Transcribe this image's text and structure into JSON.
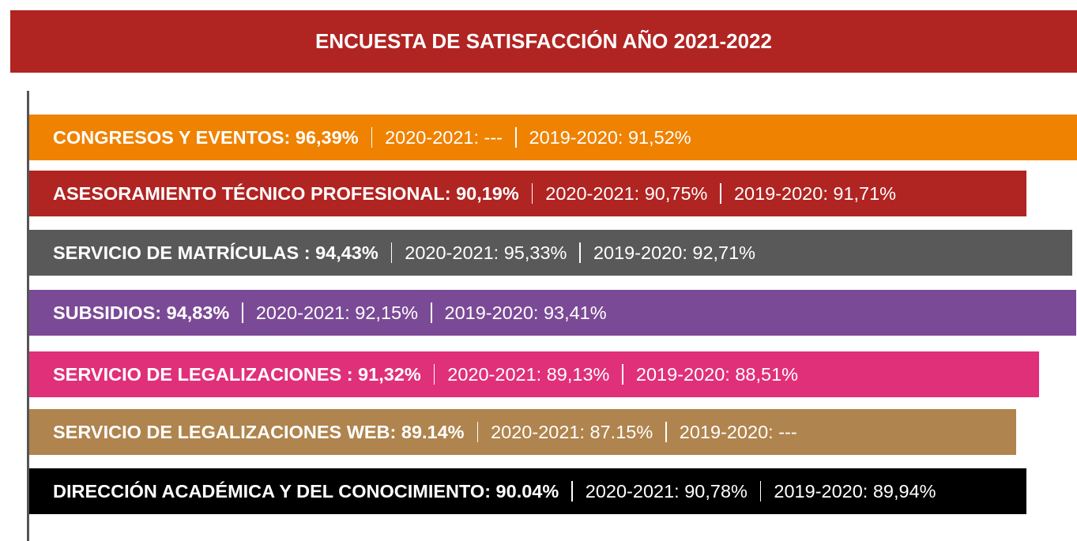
{
  "header": {
    "title": "ENCUESTA DE SATISFACCIÓN AÑO 2021-2022"
  },
  "rows": [
    {
      "head": "CONGRESOS Y EVENTOS: 96,39%",
      "y2021": "2020-2021: ---",
      "y2020": "2019-2020: 91,52%",
      "color": "#ef8200"
    },
    {
      "head": "ASESORAMIENTO TÉCNICO PROFESIONAL: 90,19%",
      "y2021": "2020-2021: 90,75%",
      "y2020": "2019-2020: 91,71%",
      "color": "#b02422"
    },
    {
      "head": "SERVICIO DE MATRÍCULAS : 94,43%",
      "y2021": "2020-2021: 95,33%",
      "y2020": "2019-2020: 92,71%",
      "color": "#595959"
    },
    {
      "head": "SUBSIDIOS: 94,83%",
      "y2021": "2020-2021: 92,15%",
      "y2020": "2019-2020: 93,41%",
      "color": "#7b4a96"
    },
    {
      "head": "SERVICIO DE LEGALIZACIONES : 91,32%",
      "y2021": "2020-2021: 89,13%",
      "y2020": "2019-2020: 88,51%",
      "color": "#e0307a"
    },
    {
      "head": "SERVICIO DE LEGALIZACIONES WEB: 89.14%",
      "y2021": "2020-2021: 87.15%",
      "y2020": "2019-2020: ---",
      "color": "#b0844e"
    },
    {
      "head": "DIRECCIÓN ACADÉMICA Y DEL CONOCIMIENTO: 90.04%",
      "y2021": "2020-2021: 90,78%",
      "y2020": "2019-2020: 89,94%",
      "color": "#000000"
    }
  ]
}
